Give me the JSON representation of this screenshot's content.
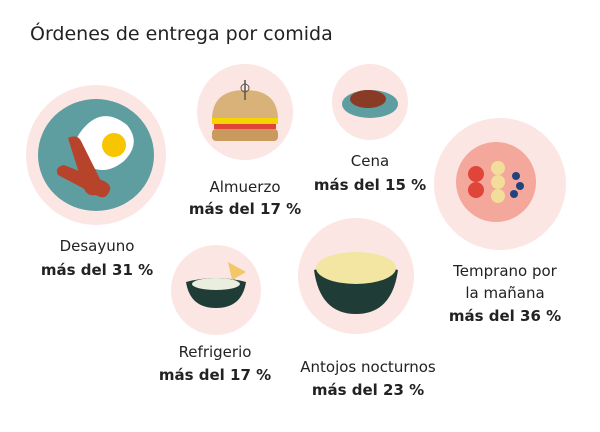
{
  "header": {
    "title": "Órdenes de entrega por comida"
  },
  "items": [
    {
      "name": [
        "Desayuno"
      ],
      "share": "más del 31 %"
    },
    {
      "name": [
        "Almuerzo"
      ],
      "share": "más del 17 %"
    },
    {
      "name": [
        "Cena"
      ],
      "share": "más del 15 %"
    },
    {
      "name": [
        "Temprano por",
        "la mañana"
      ],
      "share": "más del 36 %"
    },
    {
      "name": [
        "Refrigerio"
      ],
      "share": "más del 17 %"
    },
    {
      "name": [
        "Antojos nocturnos"
      ],
      "share": "más del 23 %"
    }
  ]
}
